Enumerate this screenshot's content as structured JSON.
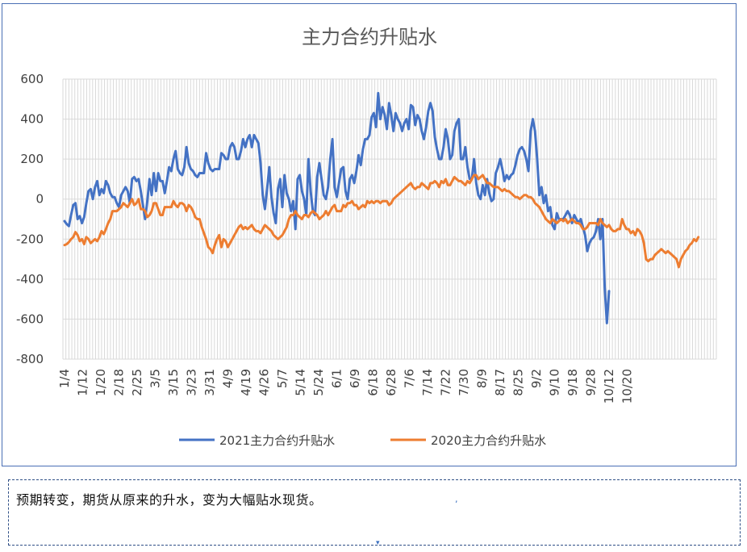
{
  "chart_data": {
    "type": "line",
    "title": "主力合约升贴水",
    "y_ticks": [
      "600",
      "400",
      "200",
      "0",
      "-200",
      "-400",
      "-600",
      "-800"
    ],
    "ylim": [
      -800,
      600
    ],
    "x_tick_labels": [
      "1/4",
      "1/12",
      "1/20",
      "2/18",
      "2/25",
      "3/5",
      "3/15",
      "3/23",
      "3/31",
      "4/9",
      "4/19",
      "4/26",
      "5/7",
      "5/14",
      "5/24",
      "6/1",
      "6/9",
      "6/18",
      "6/28",
      "7/6",
      "7/14",
      "7/22",
      "7/30",
      "8/9",
      "8/17",
      "8/25",
      "9/2",
      "9/10",
      "9/18",
      "9/28",
      "10/12",
      "10/20"
    ],
    "grid": "vertical and horizontal",
    "legend_position": "bottom",
    "series": [
      {
        "name": "2021主力合约升贴水",
        "color": "#4472C4",
        "values": [
          -110,
          -125,
          -135,
          -80,
          -30,
          -20,
          -100,
          -85,
          -120,
          -90,
          -20,
          40,
          50,
          0,
          60,
          90,
          20,
          50,
          30,
          90,
          70,
          30,
          10,
          10,
          -20,
          -40,
          20,
          40,
          60,
          40,
          -20,
          100,
          110,
          90,
          100,
          40,
          -30,
          -100,
          -10,
          100,
          20,
          130,
          40,
          130,
          90,
          90,
          30,
          90,
          160,
          140,
          200,
          240,
          150,
          130,
          120,
          160,
          260,
          180,
          150,
          140,
          120,
          110,
          130,
          130,
          130,
          230,
          180,
          150,
          140,
          150,
          150,
          150,
          230,
          220,
          200,
          200,
          260,
          280,
          260,
          200,
          200,
          240,
          300,
          260,
          300,
          320,
          260,
          320,
          300,
          280,
          180,
          20,
          -50,
          50,
          160,
          10,
          -70,
          -120,
          50,
          100,
          -40,
          120,
          30,
          0,
          -60,
          -10,
          -150,
          100,
          120,
          40,
          0,
          -80,
          200,
          40,
          -60,
          -80,
          110,
          180,
          100,
          20,
          0,
          60,
          200,
          300,
          60,
          10,
          80,
          150,
          160,
          40,
          0,
          100,
          120,
          80,
          140,
          220,
          170,
          250,
          300,
          300,
          320,
          410,
          430,
          360,
          530,
          400,
          460,
          420,
          350,
          480,
          420,
          340,
          430,
          400,
          380,
          340,
          380,
          400,
          350,
          470,
          460,
          370,
          420,
          400,
          340,
          300,
          360,
          440,
          480,
          440,
          310,
          250,
          200,
          200,
          260,
          350,
          300,
          200,
          220,
          340,
          380,
          400,
          200,
          200,
          260,
          160,
          100,
          100,
          200,
          80,
          20,
          0,
          70,
          20,
          100,
          30,
          -10,
          0,
          130,
          160,
          200,
          150,
          90,
          120,
          100,
          120,
          130,
          170,
          220,
          250,
          260,
          240,
          200,
          140,
          340,
          400,
          340,
          200,
          20,
          60,
          -20,
          20,
          -60,
          -40,
          -130,
          -150,
          -70,
          -100,
          -100,
          -100,
          -80,
          -60,
          -80,
          -120,
          -80,
          -100,
          -120,
          -100,
          -140,
          -180,
          -260,
          -220,
          -200,
          -190,
          -160,
          -100,
          -200,
          -100,
          -440,
          -620,
          -460
        ]
      },
      {
        "name": "2020主力合约升贴水",
        "color": "#ED7D31",
        "values": [
          -230,
          -225,
          -215,
          -200,
          -190,
          -165,
          -180,
          -210,
          -200,
          -225,
          -190,
          -200,
          -220,
          -210,
          -200,
          -210,
          -190,
          -160,
          -175,
          -150,
          -120,
          -100,
          -60,
          -60,
          -60,
          -50,
          -40,
          -20,
          -30,
          -40,
          -20,
          0,
          -30,
          -20,
          0,
          -50,
          -50,
          -60,
          -90,
          -80,
          -60,
          -20,
          -20,
          -50,
          -80,
          -80,
          -40,
          -40,
          -40,
          -40,
          -10,
          -30,
          -40,
          -20,
          -20,
          -30,
          -60,
          -30,
          -40,
          -60,
          -90,
          -100,
          -100,
          -140,
          -170,
          -200,
          -240,
          -250,
          -270,
          -230,
          -200,
          -180,
          -240,
          -200,
          -210,
          -240,
          -220,
          -200,
          -180,
          -160,
          -140,
          -130,
          -150,
          -140,
          -150,
          -140,
          -130,
          -150,
          -160,
          -160,
          -170,
          -150,
          -130,
          -140,
          -150,
          -160,
          -180,
          -190,
          -200,
          -190,
          -180,
          -160,
          -140,
          -100,
          -80,
          -80,
          -60,
          -80,
          -90,
          -100,
          -80,
          -80,
          -90,
          -70,
          -60,
          -70,
          -80,
          -100,
          -90,
          -80,
          -60,
          -80,
          -60,
          -40,
          -30,
          -60,
          -60,
          -60,
          -30,
          -40,
          -20,
          -20,
          -10,
          -30,
          -30,
          -50,
          -40,
          -30,
          -40,
          -10,
          -20,
          -10,
          -20,
          -10,
          -10,
          -20,
          -10,
          -10,
          -10,
          -30,
          -20,
          0,
          10,
          20,
          30,
          40,
          50,
          60,
          70,
          80,
          60,
          50,
          60,
          60,
          80,
          70,
          60,
          50,
          80,
          80,
          90,
          80,
          60,
          90,
          80,
          100,
          70,
          70,
          90,
          110,
          100,
          90,
          90,
          80,
          70,
          90,
          80,
          100,
          120,
          120,
          100,
          110,
          120,
          100,
          80,
          80,
          70,
          60,
          60,
          60,
          50,
          40,
          50,
          40,
          40,
          30,
          20,
          10,
          10,
          0,
          10,
          20,
          20,
          10,
          10,
          0,
          -20,
          -30,
          -40,
          -60,
          -80,
          -100,
          -110,
          -120,
          -100,
          -110,
          -120,
          -110,
          -100,
          -110,
          -100,
          -120,
          -110,
          -100,
          -110,
          -120,
          -120,
          -130,
          -150,
          -150,
          -140,
          -120,
          -120,
          -120,
          -120,
          -130,
          -100,
          -120,
          -130,
          -140,
          -130,
          -150,
          -160,
          -160,
          -150,
          -150,
          -100,
          -130,
          -150,
          -150,
          -170,
          -160,
          -180,
          -150,
          -160,
          -180,
          -220,
          -300,
          -310,
          -300,
          -300,
          -280,
          -270,
          -260,
          -250,
          -260,
          -270,
          -260,
          -270,
          -280,
          -290,
          -300,
          -340,
          -300,
          -280,
          -260,
          -250,
          -230,
          -220,
          -200,
          -210,
          -190
        ]
      }
    ]
  },
  "note": {
    "text": "预期转变，期货从原来的升水，变为大幅贴水现货。"
  }
}
